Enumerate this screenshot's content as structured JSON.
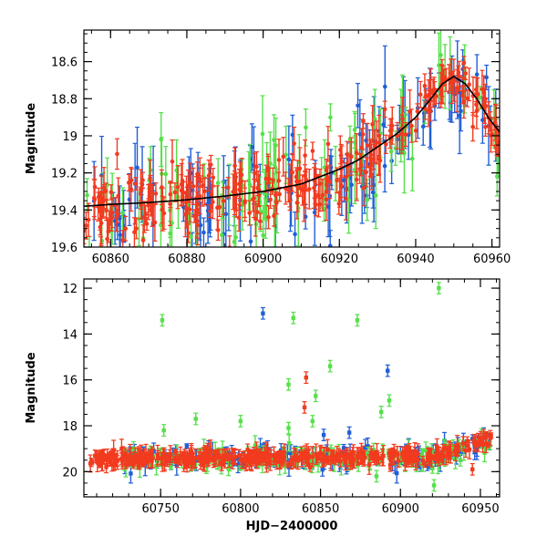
{
  "colors": {
    "blue": "#1f5fd6",
    "green": "#56e04a",
    "red": "#f23a1e",
    "model": "#000000"
  },
  "chart_data": [
    {
      "type": "scatter",
      "title": "",
      "xlabel": "",
      "ylabel": "Magnitude",
      "xlim": [
        60853,
        60962
      ],
      "ylim": [
        19.6,
        18.43
      ],
      "y_inverted": true,
      "xticks": [
        60860,
        60880,
        60900,
        60920,
        60940,
        60960
      ],
      "yticks": [
        18.6,
        18.8,
        19,
        19.2,
        19.4,
        19.6
      ],
      "ytick_labels": [
        "18.6",
        "18.8",
        "19",
        "19.2",
        "19.4",
        "19.6"
      ],
      "series": [
        {
          "name": "blue",
          "color": "blue",
          "marker": "circle",
          "error_bars": true,
          "n_points": 110
        },
        {
          "name": "green",
          "color": "green",
          "marker": "circle",
          "error_bars": true,
          "n_points": 90
        },
        {
          "name": "red",
          "color": "red",
          "marker": "circle",
          "error_bars": true,
          "n_points": 300
        }
      ],
      "model_curve": {
        "color": "model",
        "x": [
          60853,
          60860,
          60870,
          60880,
          60890,
          60900,
          60910,
          60920,
          60925,
          60930,
          60935,
          60940,
          60944,
          60947,
          60950,
          60953,
          60956,
          60959,
          60962
        ],
        "y": [
          19.38,
          19.37,
          19.36,
          19.345,
          19.325,
          19.3,
          19.26,
          19.18,
          19.13,
          19.06,
          18.99,
          18.9,
          18.8,
          18.72,
          18.68,
          18.72,
          18.8,
          18.9,
          18.98
        ]
      }
    },
    {
      "type": "scatter",
      "title": "",
      "xlabel": "HJD−2400000",
      "ylabel": "Magnitude",
      "xlim": [
        60702,
        60962
      ],
      "ylim": [
        21.1,
        11.6
      ],
      "y_inverted": true,
      "xticks": [
        60750,
        60800,
        60850,
        60900,
        60950
      ],
      "yticks": [
        12,
        14,
        16,
        18,
        20
      ],
      "ytick_labels": [
        "12",
        "14",
        "16",
        "18",
        "20"
      ],
      "series": [
        {
          "name": "blue",
          "color": "blue",
          "marker": "square",
          "error_bars": true,
          "n_points": 160,
          "outliers": [
            {
              "x": 60814,
              "y": 13.1
            },
            {
              "x": 60892,
              "y": 15.6
            },
            {
              "x": 60852,
              "y": 18.4
            },
            {
              "x": 60868,
              "y": 18.3
            }
          ]
        },
        {
          "name": "green",
          "color": "green",
          "marker": "square",
          "error_bars": true,
          "n_points": 160,
          "outliers": [
            {
              "x": 60751,
              "y": 13.4
            },
            {
              "x": 60833,
              "y": 13.3
            },
            {
              "x": 60873,
              "y": 13.4
            },
            {
              "x": 60924,
              "y": 12.0
            },
            {
              "x": 60856,
              "y": 15.4
            },
            {
              "x": 60830,
              "y": 16.2
            },
            {
              "x": 60847,
              "y": 16.7
            },
            {
              "x": 60893,
              "y": 16.9
            },
            {
              "x": 60888,
              "y": 17.4
            },
            {
              "x": 60772,
              "y": 17.7
            },
            {
              "x": 60800,
              "y": 17.8
            },
            {
              "x": 60845,
              "y": 17.8
            },
            {
              "x": 60830,
              "y": 18.1
            },
            {
              "x": 60752,
              "y": 18.2
            },
            {
              "x": 60921,
              "y": 20.6
            },
            {
              "x": 60885,
              "y": 20.2
            }
          ]
        },
        {
          "name": "red",
          "color": "red",
          "marker": "square",
          "error_bars": true,
          "n_points": 420,
          "outliers": [
            {
              "x": 60841,
              "y": 15.9
            },
            {
              "x": 60840,
              "y": 17.2
            },
            {
              "x": 60716,
              "y": 19.8
            },
            {
              "x": 60945,
              "y": 19.9
            }
          ]
        }
      ]
    }
  ]
}
